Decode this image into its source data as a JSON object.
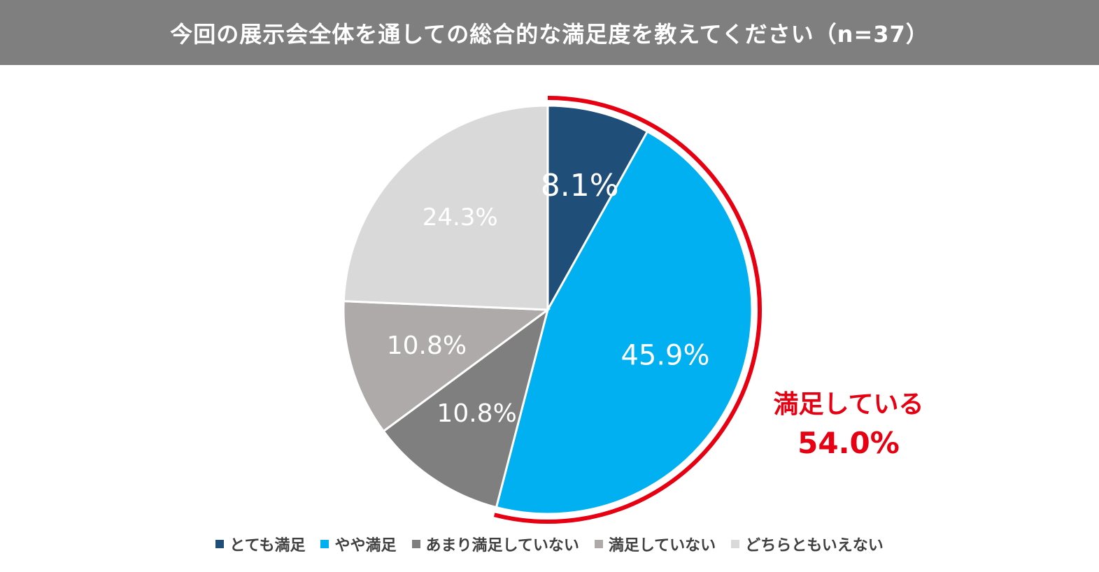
{
  "header": {
    "title": "今回の展示会全体を通しての総合的な満足度を教えてください（n=37）"
  },
  "chart_data": {
    "type": "pie",
    "title": "今回の展示会全体を通しての総合的な満足度を教えてください（n=37）",
    "slices": [
      {
        "name": "とても満足",
        "value": 8.1,
        "label": "8.1%",
        "color": "#1f4e79",
        "label_color": "#ffffff"
      },
      {
        "name": "やや満足",
        "value": 45.9,
        "label": "45.9%",
        "color": "#00b0f0",
        "label_color": "#ffffff"
      },
      {
        "name": "あまり満足していない",
        "value": 10.8,
        "label": "10.8%",
        "color": "#7f7f7f",
        "label_color": "#ffffff"
      },
      {
        "name": "満足していない",
        "value": 10.8,
        "label": "10.8%",
        "color": "#aeaaaa",
        "label_color": "#ffffff"
      },
      {
        "name": "どちらともいえない",
        "value": 24.3,
        "label": "24.3%",
        "color": "#d9d9d9",
        "label_color": "#ffffff"
      }
    ],
    "legend_position": "bottom",
    "annotation": {
      "text_line1": "満足している",
      "text_line2": "54.0%",
      "color": "#e60012"
    }
  }
}
